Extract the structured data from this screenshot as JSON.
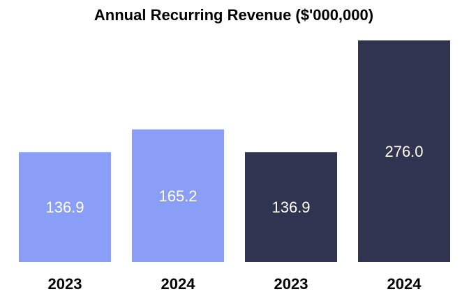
{
  "chart_data": {
    "type": "bar",
    "title": "Annual Recurring Revenue ($'000,000)",
    "categories": [
      "2023",
      "2024",
      "2023",
      "2024"
    ],
    "values": [
      136.9,
      165.2,
      136.9,
      276.0
    ],
    "value_labels": [
      "136.9",
      "165.2",
      "136.9",
      "276.0"
    ],
    "colors": [
      "#8b9ef7",
      "#8b9ef7",
      "#313450",
      "#313450"
    ],
    "xlabel": "",
    "ylabel": "",
    "ylim": [
      0,
      276.0
    ],
    "grid": false,
    "legend": "none"
  }
}
